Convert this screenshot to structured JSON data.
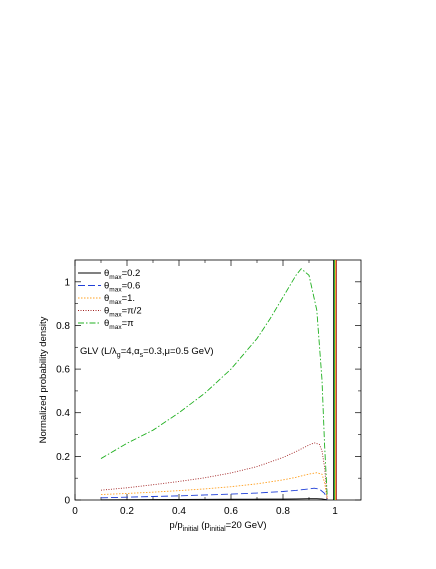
{
  "chart_data": {
    "type": "line",
    "xlabel": "p/p_initial (p_initial=20 GeV)",
    "ylabel": "Normalized probability density",
    "annotation": "GLV (L/λg=4,αs=0.3,μ=0.5 GeV)",
    "xlim": [
      0,
      1.1
    ],
    "ylim": [
      0,
      1.1
    ],
    "xticks": [
      0,
      0.2,
      0.4,
      0.6,
      0.8,
      1
    ],
    "xticklabels": [
      "0",
      "0.2",
      "0.4",
      "0.6",
      "0.8",
      "1"
    ],
    "yticks": [
      0,
      0.2,
      0.4,
      0.6,
      0.8,
      1
    ],
    "yticklabels": [
      "0",
      "0.2",
      "0.4",
      "0.6",
      "0.8",
      "1"
    ],
    "grid": false,
    "legend_position": "top-left",
    "legend": [
      "θmax=0.2",
      "θmax=0.6",
      "θmax=1.",
      "θmax=π/2",
      "θmax=π"
    ],
    "series": [
      {
        "name": "θmax=0.2",
        "color": "#000000",
        "dash": "solid",
        "x": [
          0.1,
          0.2,
          0.3,
          0.4,
          0.5,
          0.6,
          0.7,
          0.8,
          0.85,
          0.9,
          0.93,
          0.95,
          0.97
        ],
        "y": [
          0.001,
          0.0015,
          0.002,
          0.0025,
          0.003,
          0.0035,
          0.004,
          0.0045,
          0.005,
          0.006,
          0.006,
          0.005,
          0.001
        ]
      },
      {
        "name": "θmax=0.6",
        "color": "#1f3fd8",
        "dash": "long-dash",
        "x": [
          0.1,
          0.2,
          0.3,
          0.4,
          0.5,
          0.6,
          0.7,
          0.8,
          0.85,
          0.9,
          0.92,
          0.94,
          0.96,
          0.97
        ],
        "y": [
          0.01,
          0.013,
          0.016,
          0.019,
          0.023,
          0.027,
          0.032,
          0.039,
          0.044,
          0.051,
          0.054,
          0.05,
          0.03,
          0.003
        ]
      },
      {
        "name": "θmax=1.",
        "color": "#ffa020",
        "dash": "dotted",
        "x": [
          0.1,
          0.2,
          0.3,
          0.4,
          0.5,
          0.6,
          0.7,
          0.8,
          0.85,
          0.9,
          0.93,
          0.95,
          0.96,
          0.97
        ],
        "y": [
          0.025,
          0.03,
          0.036,
          0.043,
          0.051,
          0.061,
          0.074,
          0.092,
          0.104,
          0.119,
          0.125,
          0.118,
          0.08,
          0.005
        ]
      },
      {
        "name": "θmax=π/2",
        "color": "#a02020",
        "dash": "fine-dotted",
        "x": [
          0.1,
          0.2,
          0.3,
          0.4,
          0.5,
          0.6,
          0.7,
          0.8,
          0.85,
          0.9,
          0.92,
          0.94,
          0.95,
          0.96,
          0.97
        ],
        "y": [
          0.045,
          0.056,
          0.07,
          0.085,
          0.102,
          0.124,
          0.153,
          0.195,
          0.222,
          0.252,
          0.262,
          0.255,
          0.225,
          0.15,
          0.005
        ]
      },
      {
        "name": "θmax=π",
        "color": "#20b020",
        "dash": "dash-dot",
        "x": [
          0.1,
          0.2,
          0.3,
          0.4,
          0.5,
          0.6,
          0.7,
          0.75,
          0.8,
          0.85,
          0.87,
          0.9,
          0.93,
          0.95,
          0.96,
          0.97
        ],
        "y": [
          0.19,
          0.26,
          0.32,
          0.4,
          0.49,
          0.6,
          0.74,
          0.83,
          0.93,
          1.03,
          1.06,
          1.03,
          0.87,
          0.55,
          0.25,
          0.02
        ]
      }
    ],
    "vertical_line": {
      "x": 1.0,
      "colors": [
        "#000000",
        "#20b020",
        "#ffa020",
        "#a02020"
      ]
    }
  }
}
